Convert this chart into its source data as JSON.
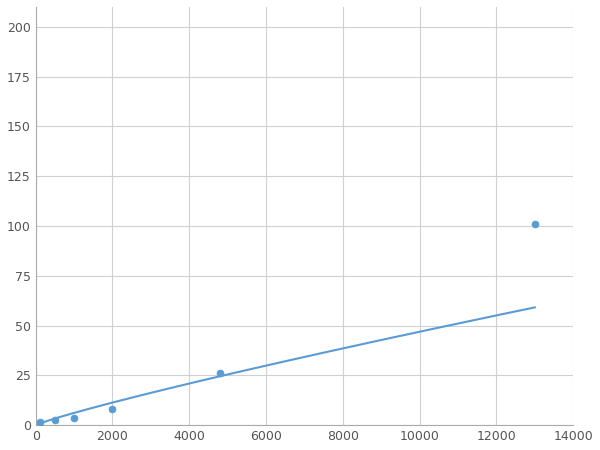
{
  "x_points": [
    100,
    500,
    1000,
    2000,
    4800,
    13000
  ],
  "y_points": [
    1.5,
    2.5,
    3.5,
    8,
    26,
    101
  ],
  "line_color": "#5b9bd5",
  "marker_color": "#5b9bd5",
  "marker_size": 5,
  "line_width": 1.5,
  "xlim": [
    0,
    14000
  ],
  "ylim": [
    0,
    210
  ],
  "xticks": [
    0,
    2000,
    4000,
    6000,
    8000,
    10000,
    12000,
    14000
  ],
  "yticks": [
    0,
    25,
    50,
    75,
    100,
    125,
    150,
    175,
    200
  ],
  "grid_color": "#d0d0d0",
  "background_color": "#ffffff",
  "fig_background": "#ffffff",
  "tick_label_color": "#555555",
  "tick_label_size": 9,
  "spine_color": "#aaaaaa"
}
